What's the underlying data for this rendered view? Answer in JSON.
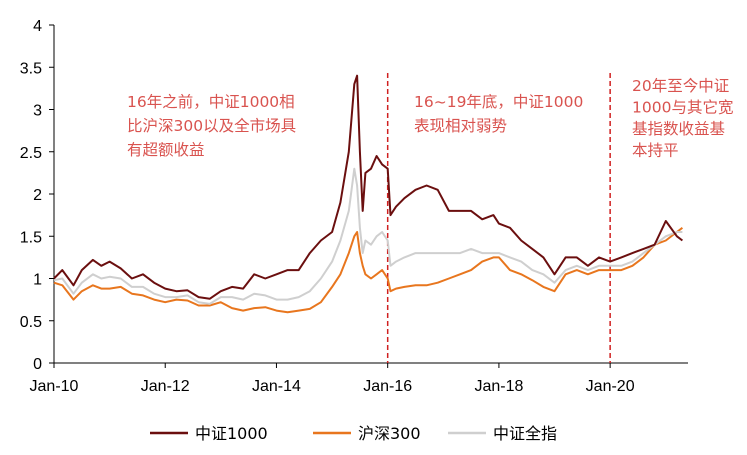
{
  "chart_data": {
    "type": "line",
    "title": "",
    "xlabel": "",
    "ylabel": "",
    "x_ticks": [
      "Jan-10",
      "Jan-12",
      "Jan-14",
      "Jan-16",
      "Jan-18",
      "Jan-20"
    ],
    "x_tick_values": [
      2010,
      2012,
      2014,
      2016,
      2018,
      2020
    ],
    "xlim": [
      2010,
      2021.4
    ],
    "ylim": [
      0,
      4
    ],
    "y_ticks": [
      0,
      0.5,
      1,
      1.5,
      2,
      2.5,
      3,
      3.5,
      4
    ],
    "y_tick_labels": [
      "0",
      "0.5",
      "1",
      "1.5",
      "2",
      "2.5",
      "3",
      "3.5",
      "4"
    ],
    "grid": false,
    "legend_position": "bottom",
    "series": [
      {
        "name": "中证1000",
        "color": "#6b0f0f",
        "x": [
          2010.0,
          2010.15,
          2010.35,
          2010.5,
          2010.7,
          2010.85,
          2011.0,
          2011.2,
          2011.4,
          2011.6,
          2011.8,
          2012.0,
          2012.2,
          2012.4,
          2012.6,
          2012.8,
          2013.0,
          2013.2,
          2013.4,
          2013.6,
          2013.8,
          2014.0,
          2014.2,
          2014.4,
          2014.6,
          2014.8,
          2015.0,
          2015.15,
          2015.3,
          2015.4,
          2015.45,
          2015.5,
          2015.55,
          2015.6,
          2015.7,
          2015.8,
          2015.9,
          2016.0,
          2016.05,
          2016.15,
          2016.3,
          2016.5,
          2016.7,
          2016.9,
          2017.1,
          2017.3,
          2017.5,
          2017.7,
          2017.9,
          2018.0,
          2018.2,
          2018.4,
          2018.6,
          2018.8,
          2019.0,
          2019.2,
          2019.4,
          2019.6,
          2019.8,
          2020.0,
          2020.2,
          2020.4,
          2020.6,
          2020.8,
          2021.0,
          2021.2,
          2021.3
        ],
        "values": [
          1.0,
          1.1,
          0.92,
          1.1,
          1.22,
          1.15,
          1.2,
          1.12,
          1.0,
          1.05,
          0.95,
          0.88,
          0.85,
          0.86,
          0.78,
          0.76,
          0.85,
          0.9,
          0.88,
          1.05,
          1.0,
          1.05,
          1.1,
          1.1,
          1.3,
          1.45,
          1.55,
          1.9,
          2.5,
          3.3,
          3.4,
          2.5,
          1.8,
          2.25,
          2.3,
          2.45,
          2.35,
          2.3,
          1.75,
          1.85,
          1.95,
          2.05,
          2.1,
          2.05,
          1.8,
          1.8,
          1.8,
          1.7,
          1.75,
          1.65,
          1.6,
          1.45,
          1.35,
          1.25,
          1.05,
          1.25,
          1.25,
          1.15,
          1.25,
          1.2,
          1.25,
          1.3,
          1.35,
          1.4,
          1.68,
          1.5,
          1.45
        ]
      },
      {
        "name": "沪深300",
        "color": "#e8761e",
        "x": [
          2010.0,
          2010.15,
          2010.35,
          2010.5,
          2010.7,
          2010.85,
          2011.0,
          2011.2,
          2011.4,
          2011.6,
          2011.8,
          2012.0,
          2012.2,
          2012.4,
          2012.6,
          2012.8,
          2013.0,
          2013.2,
          2013.4,
          2013.6,
          2013.8,
          2014.0,
          2014.2,
          2014.4,
          2014.6,
          2014.8,
          2015.0,
          2015.15,
          2015.3,
          2015.4,
          2015.45,
          2015.5,
          2015.55,
          2015.6,
          2015.7,
          2015.8,
          2015.9,
          2016.0,
          2016.05,
          2016.15,
          2016.3,
          2016.5,
          2016.7,
          2016.9,
          2017.1,
          2017.3,
          2017.5,
          2017.7,
          2017.9,
          2018.0,
          2018.2,
          2018.4,
          2018.6,
          2018.8,
          2019.0,
          2019.2,
          2019.4,
          2019.6,
          2019.8,
          2020.0,
          2020.2,
          2020.4,
          2020.6,
          2020.8,
          2021.0,
          2021.2,
          2021.3
        ],
        "values": [
          0.95,
          0.92,
          0.75,
          0.85,
          0.92,
          0.88,
          0.88,
          0.9,
          0.82,
          0.8,
          0.75,
          0.72,
          0.75,
          0.74,
          0.68,
          0.68,
          0.72,
          0.65,
          0.62,
          0.65,
          0.66,
          0.62,
          0.6,
          0.62,
          0.64,
          0.72,
          0.9,
          1.05,
          1.3,
          1.5,
          1.55,
          1.3,
          1.15,
          1.05,
          1.0,
          1.05,
          1.1,
          1.0,
          0.85,
          0.88,
          0.9,
          0.92,
          0.92,
          0.95,
          1.0,
          1.05,
          1.1,
          1.2,
          1.25,
          1.25,
          1.1,
          1.05,
          0.98,
          0.9,
          0.85,
          1.05,
          1.1,
          1.05,
          1.1,
          1.1,
          1.1,
          1.15,
          1.25,
          1.4,
          1.45,
          1.55,
          1.6
        ]
      },
      {
        "name": "中证全指",
        "color": "#cfcfcf",
        "x": [
          2010.0,
          2010.15,
          2010.35,
          2010.5,
          2010.7,
          2010.85,
          2011.0,
          2011.2,
          2011.4,
          2011.6,
          2011.8,
          2012.0,
          2012.2,
          2012.4,
          2012.6,
          2012.8,
          2013.0,
          2013.2,
          2013.4,
          2013.6,
          2013.8,
          2014.0,
          2014.2,
          2014.4,
          2014.6,
          2014.8,
          2015.0,
          2015.15,
          2015.3,
          2015.4,
          2015.45,
          2015.5,
          2015.55,
          2015.6,
          2015.7,
          2015.8,
          2015.9,
          2016.0,
          2016.05,
          2016.15,
          2016.3,
          2016.5,
          2016.7,
          2016.9,
          2017.1,
          2017.3,
          2017.5,
          2017.7,
          2017.9,
          2018.0,
          2018.2,
          2018.4,
          2018.6,
          2018.8,
          2019.0,
          2019.2,
          2019.4,
          2019.6,
          2019.8,
          2020.0,
          2020.2,
          2020.4,
          2020.6,
          2020.8,
          2021.0,
          2021.2,
          2021.3
        ],
        "values": [
          0.98,
          1.0,
          0.82,
          0.95,
          1.05,
          1.0,
          1.02,
          1.0,
          0.9,
          0.9,
          0.82,
          0.78,
          0.78,
          0.8,
          0.72,
          0.7,
          0.78,
          0.78,
          0.75,
          0.82,
          0.8,
          0.75,
          0.75,
          0.78,
          0.85,
          1.0,
          1.2,
          1.45,
          1.8,
          2.3,
          2.1,
          1.6,
          1.3,
          1.45,
          1.4,
          1.5,
          1.55,
          1.45,
          1.15,
          1.2,
          1.25,
          1.3,
          1.3,
          1.3,
          1.3,
          1.3,
          1.35,
          1.3,
          1.3,
          1.3,
          1.25,
          1.2,
          1.1,
          1.05,
          0.95,
          1.1,
          1.15,
          1.1,
          1.15,
          1.15,
          1.15,
          1.2,
          1.3,
          1.4,
          1.5,
          1.55,
          1.55
        ]
      }
    ],
    "annotations": [
      {
        "lines": [
          "16年之前，中证1000相",
          "比沪深300以及全市场具",
          "有超额收益"
        ],
        "color": "#d9534f"
      },
      {
        "lines": [
          "16~19年底，中证1000",
          "表现相对弱势"
        ],
        "color": "#d9534f"
      },
      {
        "lines": [
          "20年至今中证",
          "1000与其它宽",
          "基指数收益基",
          "本持平"
        ],
        "color": "#d9534f"
      }
    ],
    "vertical_markers": [
      {
        "x": 2016.0,
        "color": "#d02020",
        "style": "dashed"
      },
      {
        "x": 2020.0,
        "color": "#d02020",
        "style": "dashed"
      }
    ]
  }
}
